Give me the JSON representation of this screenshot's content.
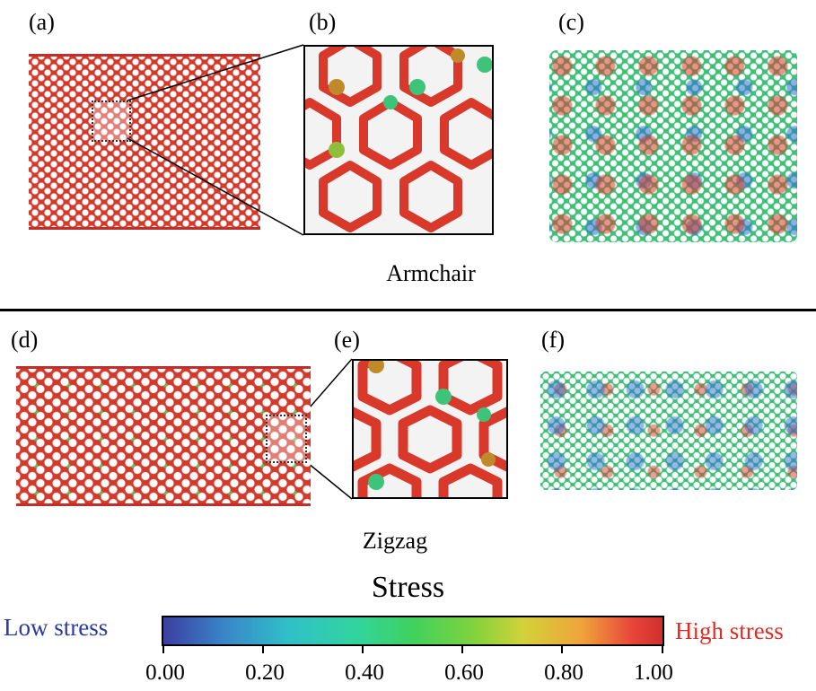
{
  "labels": {
    "a": "(a)",
    "b": "(b)",
    "c": "(c)",
    "d": "(d)",
    "e": "(e)",
    "f": "(f)"
  },
  "sections": {
    "top": "Armchair",
    "bottom": "Zigzag"
  },
  "colorbar": {
    "title": "Stress",
    "low_label": "Low stress",
    "high_label": "High stress",
    "ticks": [
      "0.00",
      "0.20",
      "0.40",
      "0.60",
      "0.80",
      "1.00"
    ]
  },
  "colors": {
    "high": "#d93a2c",
    "mid": "#39c46a",
    "low": "#2e6fd0",
    "yellow": "#b8c03a"
  }
}
